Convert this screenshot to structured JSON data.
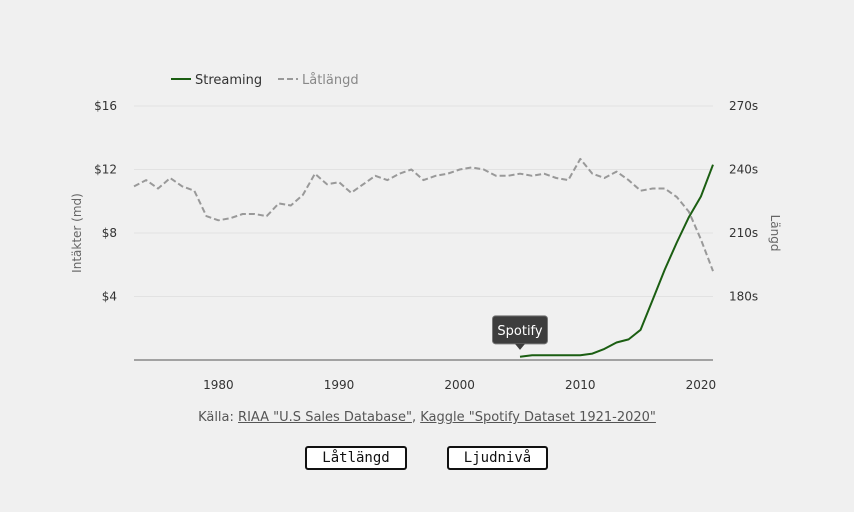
{
  "chart_data": {
    "type": "line",
    "legend": {
      "position": "top-left",
      "entries": [
        {
          "name": "Streaming",
          "color": "#1b5e12",
          "dashed": false
        },
        {
          "name": "Låtlängd",
          "color": "#999999",
          "dashed": true
        }
      ]
    },
    "xlabel": "",
    "ylabel_left": "Intäkter (md)",
    "ylabel_right": "Längd",
    "x_ticks": [
      "1980",
      "1990",
      "2000",
      "2010",
      "2020"
    ],
    "y_left_ticks": [
      "$4",
      "$8",
      "$12",
      "$16"
    ],
    "y_right_ticks": [
      "180s",
      "210s",
      "240s",
      "270s"
    ],
    "xlim": [
      1973,
      2021
    ],
    "ylim_left": [
      0,
      16
    ],
    "ylim_right": [
      150,
      270
    ],
    "grid": true,
    "series": [
      {
        "name": "Streaming",
        "axis": "left",
        "x": [
          2005,
          2006,
          2007,
          2008,
          2009,
          2010,
          2011,
          2012,
          2013,
          2014,
          2015,
          2016,
          2017,
          2018,
          2019,
          2020,
          2021
        ],
        "values": [
          0.2,
          0.3,
          0.3,
          0.3,
          0.3,
          0.3,
          0.4,
          0.7,
          1.1,
          1.3,
          1.9,
          3.8,
          5.7,
          7.4,
          9.0,
          10.3,
          12.3
        ]
      },
      {
        "name": "Låtlängd",
        "axis": "right",
        "x": [
          1973,
          1974,
          1975,
          1976,
          1977,
          1978,
          1979,
          1980,
          1981,
          1982,
          1983,
          1984,
          1985,
          1986,
          1987,
          1988,
          1989,
          1990,
          1991,
          1992,
          1993,
          1994,
          1995,
          1996,
          1997,
          1998,
          1999,
          2000,
          2001,
          2002,
          2003,
          2004,
          2005,
          2006,
          2007,
          2008,
          2009,
          2010,
          2011,
          2012,
          2013,
          2014,
          2015,
          2016,
          2017,
          2018,
          2019,
          2020,
          2021
        ],
        "values": [
          232,
          235,
          231,
          236,
          232,
          230,
          218,
          216,
          217,
          219,
          219,
          218,
          224,
          223,
          228,
          238,
          233,
          234,
          229,
          233,
          237,
          235,
          238,
          240,
          235,
          237,
          238,
          240,
          241,
          240,
          237,
          237,
          238,
          237,
          238,
          236,
          235,
          245,
          238,
          236,
          239,
          235,
          230,
          231,
          231,
          227,
          220,
          207,
          192
        ]
      }
    ],
    "annotations": [
      {
        "text": "Spotify",
        "x": 2005,
        "y": 0.2,
        "series": "Streaming"
      }
    ],
    "source": {
      "prefix": "Källa: ",
      "links": [
        "RIAA \"U.S Sales Database\"",
        "Kaggle \"Spotify Dataset 1921-2020\""
      ],
      "separator": ", "
    }
  },
  "buttons": {
    "song_length": "Låtlängd",
    "loudness": "Ljudnivå"
  }
}
